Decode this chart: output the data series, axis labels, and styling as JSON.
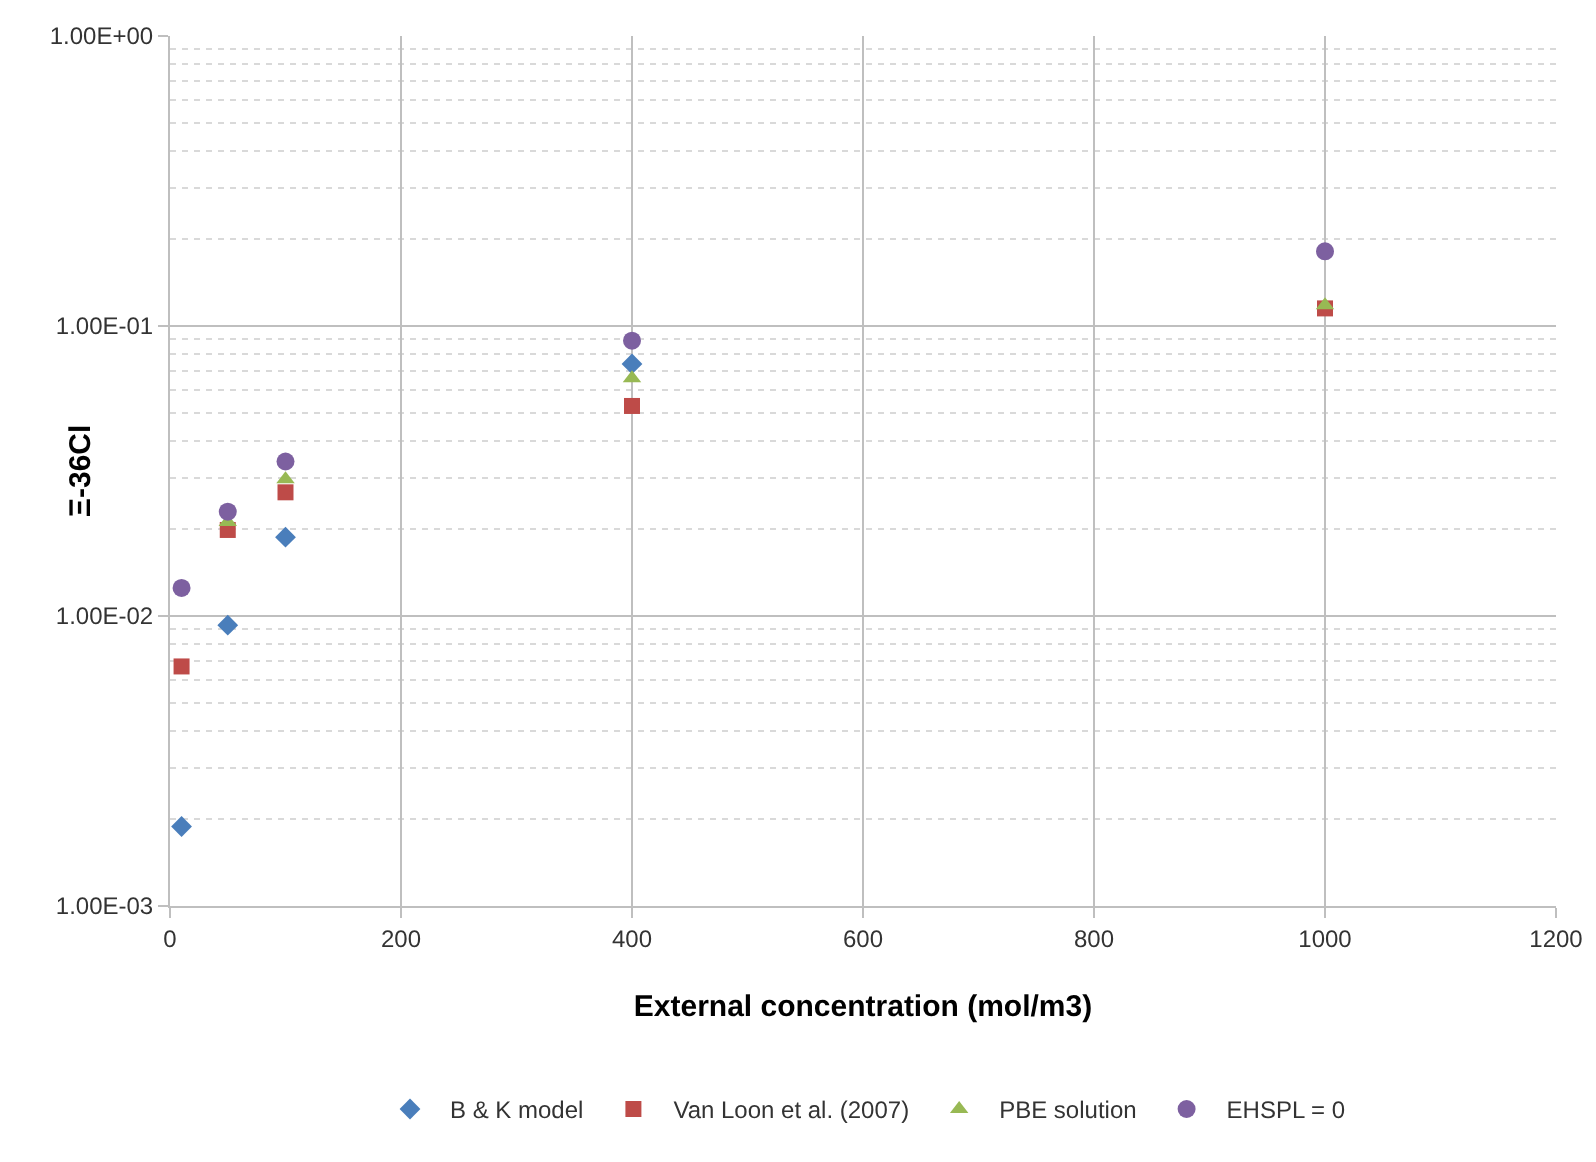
{
  "chart_data": {
    "type": "scatter",
    "xlabel": "External concentration (mol/m3)",
    "ylabel": "Ξ-36Cl",
    "x": [
      10,
      50,
      100,
      400,
      1000
    ],
    "series": [
      {
        "name": "B & K model",
        "color": "#4a7ebb",
        "marker": "diamond",
        "values": [
          0.00188,
          0.0093,
          0.0187,
          0.074,
          null
        ]
      },
      {
        "name": "Van Loon et al. (2007)",
        "color": "#be4b48",
        "marker": "square",
        "values": [
          0.0067,
          0.0198,
          0.0267,
          0.053,
          0.115
        ]
      },
      {
        "name": "PBE solution",
        "color": "#98b954",
        "marker": "triangle",
        "values": [
          null,
          0.0211,
          0.0296,
          0.066,
          0.118
        ]
      },
      {
        "name": "EHSPL = 0",
        "color": "#7d60a0",
        "marker": "circle",
        "values": [
          0.0125,
          0.0229,
          0.0341,
          0.089,
          0.181
        ]
      }
    ],
    "log": "y",
    "xlim": [
      0,
      1200
    ],
    "xticks": [
      0,
      200,
      400,
      600,
      800,
      1000,
      1200
    ],
    "ylim": [
      0.001,
      1
    ],
    "yticks": [
      {
        "value": 0.001,
        "label": "1.00E-03"
      },
      {
        "value": 0.01,
        "label": "1.00E-02"
      },
      {
        "value": 0.1,
        "label": "1.00E-01"
      },
      {
        "value": 1,
        "label": "1.00E+00"
      }
    ],
    "grid": true,
    "legend": "bottom"
  }
}
